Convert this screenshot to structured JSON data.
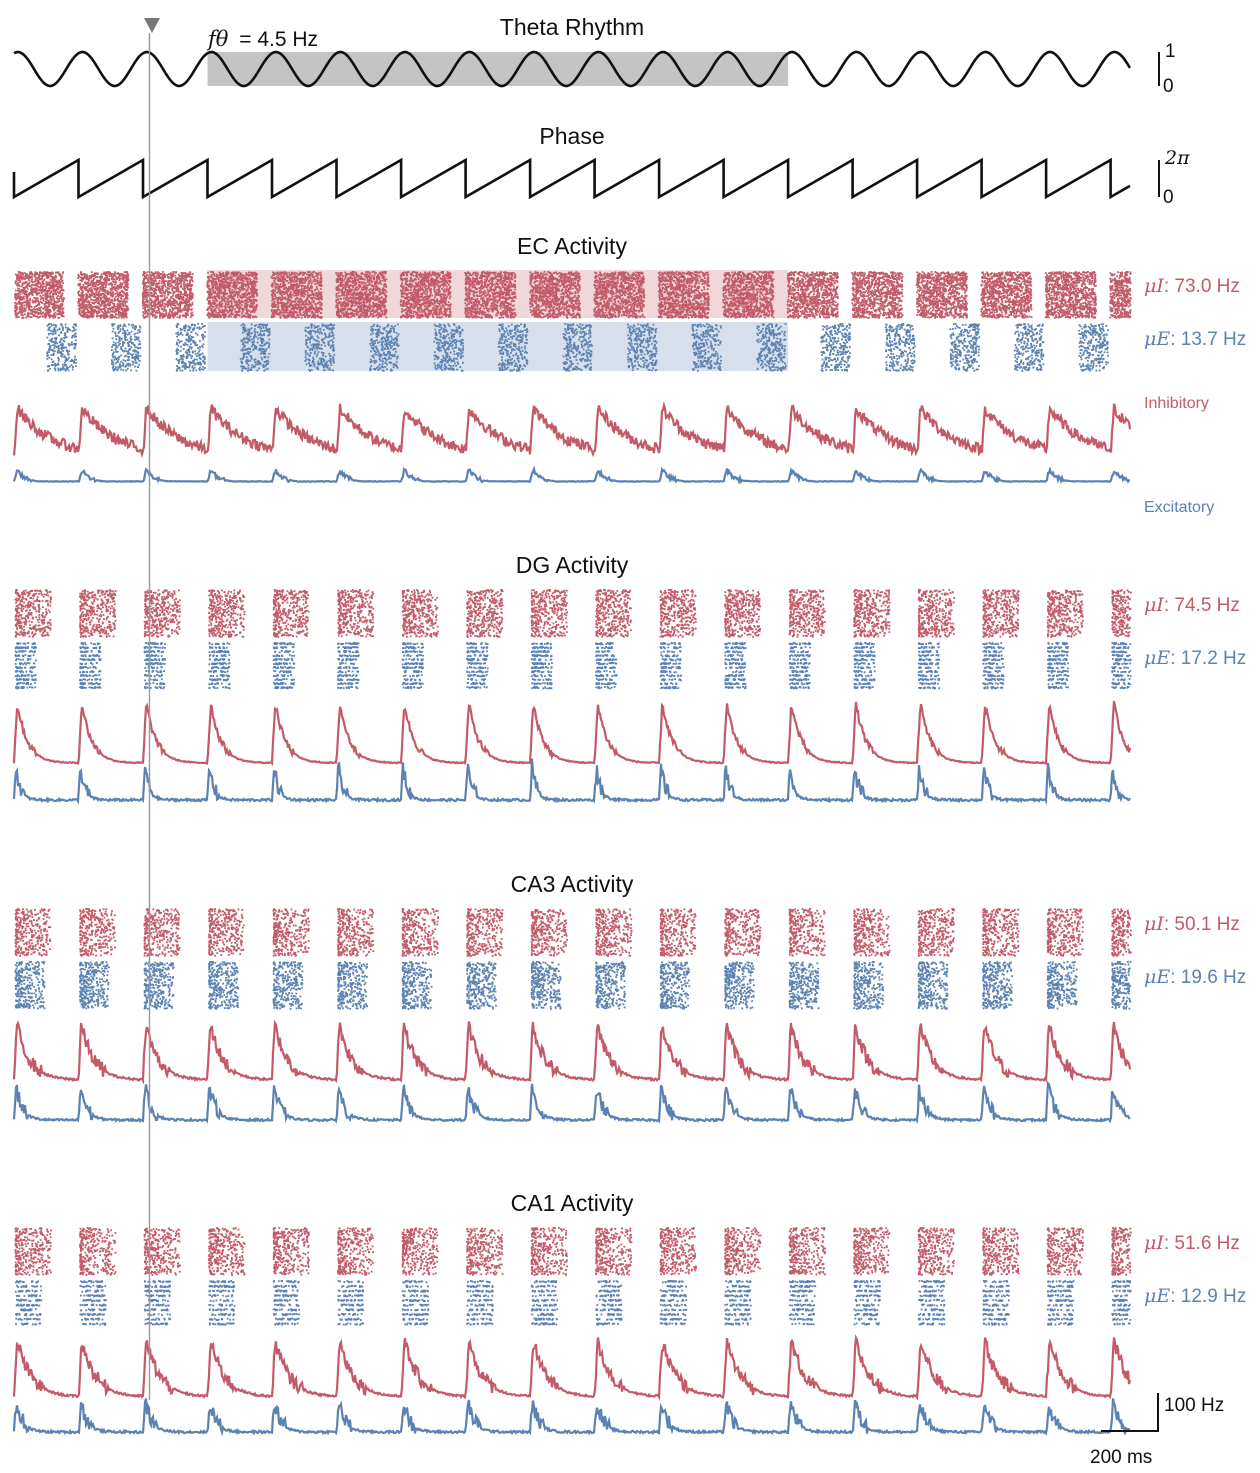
{
  "colors": {
    "inhibitory": "#c25b67",
    "excitatory": "#5b82b0",
    "theta_band": "#c4c4c4",
    "ec_inh_band": "#f0d7da",
    "ec_exc_band": "#d6dfeb",
    "cursor": "#999999",
    "trace": "#111111"
  },
  "theta": {
    "title": "Theta Rhythm",
    "freq_symbol": "fθ",
    "freq_text": "= 4.5 Hz",
    "scale_top": "1",
    "scale_bottom": "0"
  },
  "phase": {
    "title": "Phase",
    "scale_top": "2π",
    "scale_bottom": "0"
  },
  "legend": {
    "inhibitory": "Inhibitory",
    "excitatory": "Excitatory"
  },
  "regions": [
    {
      "title": "EC Activity",
      "inh_symbol": "μI",
      "inh_rate": ": 73.0 Hz",
      "exc_symbol": "μE",
      "exc_rate": ": 13.7 Hz"
    },
    {
      "title": "DG Activity",
      "inh_symbol": "μI",
      "inh_rate": ": 74.5 Hz",
      "exc_symbol": "μE",
      "exc_rate": ": 17.2 Hz"
    },
    {
      "title": "CA3 Activity",
      "inh_symbol": "μI",
      "inh_rate": ": 50.1 Hz",
      "exc_symbol": "μE",
      "exc_rate": ": 19.6 Hz"
    },
    {
      "title": "CA1 Activity",
      "inh_symbol": "μI",
      "inh_rate": ": 51.6 Hz",
      "exc_symbol": "μE",
      "exc_rate": ": 12.9 Hz"
    }
  ],
  "scalebar": {
    "rate": "100 Hz",
    "time": "200 ms"
  },
  "chart_data": {
    "type": "line",
    "theta_frequency_hz": 4.5,
    "cycle_count": 17.3,
    "theta_range": [
      0,
      1
    ],
    "phase_range": [
      0,
      6.283
    ],
    "highlight_cycles": [
      3,
      12
    ],
    "cursor_cycle": 2.1,
    "mean_rates_hz": [
      {
        "region": "EC",
        "inhibitory": 73.0,
        "excitatory": 13.7
      },
      {
        "region": "DG",
        "inhibitory": 74.5,
        "excitatory": 17.2
      },
      {
        "region": "CA3",
        "inhibitory": 50.1,
        "excitatory": 19.6
      },
      {
        "region": "CA1",
        "inhibitory": 51.6,
        "excitatory": 12.9
      }
    ],
    "scalebar": {
      "rate_hz": 100,
      "time_ms": 200
    }
  }
}
